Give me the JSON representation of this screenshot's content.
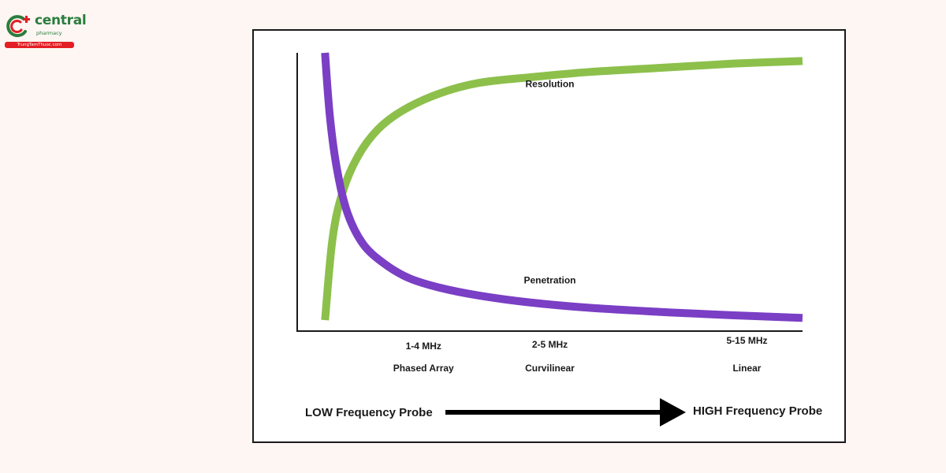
{
  "logo": {
    "name": "central",
    "subtitle": "pharmacy",
    "website": "TrungTamThuoc.com",
    "colors": {
      "green": "#2b7d3d",
      "red": "#e31e24"
    }
  },
  "chart_data": {
    "type": "line",
    "title": "",
    "xlabel": "",
    "ylabel": "",
    "grid": false,
    "xlim": [
      0,
      10
    ],
    "ylim": [
      0,
      10
    ],
    "series": [
      {
        "name": "Resolution",
        "color": "#8cc04b",
        "x": [
          0.55,
          0.7,
          0.9,
          1.2,
          1.6,
          2.1,
          2.8,
          3.6,
          4.6,
          5.8,
          7.2,
          8.6,
          10.0
        ],
        "y": [
          0.2,
          3.2,
          4.9,
          6.2,
          7.2,
          7.9,
          8.5,
          8.9,
          9.1,
          9.3,
          9.45,
          9.6,
          9.7
        ]
      },
      {
        "name": "Penetration",
        "color": "#7a3fc4",
        "x": [
          0.55,
          0.65,
          0.8,
          1.0,
          1.3,
          1.7,
          2.2,
          2.8,
          3.6,
          4.6,
          5.8,
          7.2,
          8.6,
          10.0
        ],
        "y": [
          10.0,
          7.6,
          5.6,
          4.1,
          3.0,
          2.3,
          1.75,
          1.4,
          1.1,
          0.85,
          0.65,
          0.5,
          0.38,
          0.28
        ]
      }
    ],
    "annotations": [
      {
        "text": "Resolution",
        "x": 5.0,
        "y": 8.75
      },
      {
        "text": "Penetration",
        "x": 5.0,
        "y": 1.55
      }
    ],
    "probe_groups": [
      {
        "frequency": "1-4 MHz",
        "probe": "Phased Array",
        "x": 2.5
      },
      {
        "frequency": "2-5 MHz",
        "probe": "Curvilinear",
        "x": 5.0
      },
      {
        "frequency": "5-15 MHz",
        "probe": "Linear",
        "x": 8.9
      }
    ],
    "arrow": {
      "start_label": "LOW Frequency Probe",
      "end_label": "HIGH Frequency Probe"
    }
  }
}
